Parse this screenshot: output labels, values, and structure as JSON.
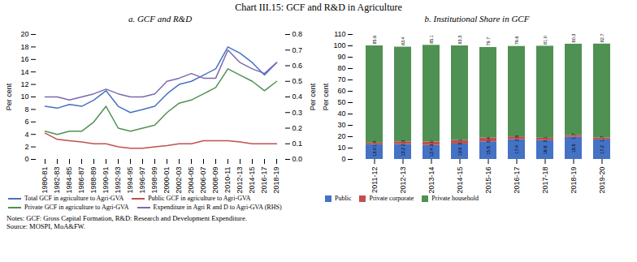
{
  "title": "Chart III.15: GCF and R&D in Agriculture",
  "notes": [
    "Notes: GCF: Gross Capital Formation, R&D: Research and Development Expenditure.",
    "Source: MOSPI, MoA&FW."
  ],
  "chart_data": [
    {
      "type": "line",
      "title": "a. GCF and R&D",
      "categories": [
        "1980-81",
        "1982-83",
        "1984-85",
        "1986-87",
        "1988-89",
        "1990-91",
        "1992-93",
        "1994-95",
        "1996-97",
        "1998-99",
        "2000-01",
        "2002-03",
        "2004-05",
        "2006-07",
        "2008-09",
        "2010-11",
        "2012-13",
        "2014-15",
        "2016-17",
        "2018-19"
      ],
      "series": [
        {
          "name": "Total GCF in agriculture to Agri-GVA",
          "color": "#4472C4",
          "values": [
            8.5,
            8.2,
            8.8,
            8.5,
            9.5,
            11.0,
            8.5,
            7.5,
            8.0,
            8.5,
            10.5,
            12.0,
            12.5,
            13.5,
            14.5,
            18.0,
            17.0,
            15.5,
            13.5,
            15.5
          ]
        },
        {
          "name": "Public GCF in agriculture to Agri-GVA",
          "color": "#C0504D",
          "values": [
            4.2,
            3.2,
            3.0,
            2.8,
            2.5,
            2.5,
            2.0,
            1.8,
            1.8,
            2.0,
            2.2,
            2.5,
            2.5,
            3.0,
            3.0,
            3.0,
            2.8,
            2.5,
            2.5,
            2.5
          ]
        },
        {
          "name": "Private GCF in agriculture to Agri-GVA",
          "color": "#4F9153",
          "values": [
            4.5,
            4.0,
            4.5,
            4.5,
            6.0,
            8.5,
            5.0,
            4.5,
            5.0,
            5.5,
            7.5,
            9.0,
            9.5,
            10.5,
            11.5,
            14.5,
            13.5,
            12.5,
            11.0,
            12.5
          ]
        },
        {
          "name": "Expenditure in Agri R and D to Agri-GVA (RHS)",
          "color": "#7B68AE",
          "axis": "y2",
          "values": [
            0.4,
            0.4,
            0.38,
            0.4,
            0.42,
            0.45,
            0.42,
            0.4,
            0.4,
            0.42,
            0.5,
            0.52,
            0.55,
            0.52,
            0.52,
            0.7,
            0.62,
            0.58,
            0.55,
            0.62
          ]
        }
      ],
      "ylabel": "Per cent",
      "y2label": "Per cent",
      "ylim": [
        0,
        20
      ],
      "yticks": [
        0,
        2,
        4,
        6,
        8,
        10,
        12,
        14,
        16,
        18,
        20
      ],
      "y2lim": [
        0,
        0.8
      ],
      "y2ticks": [
        {
          "value": 0,
          "label": "0.0"
        },
        0.1,
        0.2,
        0.3,
        0.4,
        0.5,
        0.6,
        0.7,
        0.8
      ],
      "grid": false,
      "legend": "bottom"
    },
    {
      "type": "bar",
      "title": "b. Institutional Share in GCF",
      "categories": [
        "2011-12",
        "2012-13",
        "2013-14",
        "2014-15",
        "2015-16",
        "2016-17",
        "2017-18",
        "2018-19",
        "2019-20"
      ],
      "series": [
        {
          "name": "Public",
          "color": "#4472C4",
          "values": [
            13.0,
            13.2,
            12.4,
            13.6,
            15.5,
            17.4,
            16.6,
            19.5,
            17.2
          ],
          "value_labels": [
            "13.0",
            "13.2",
            "12.4",
            "13.6",
            "15.5",
            "17.4",
            "16.6",
            "19.5",
            "17.2"
          ]
        },
        {
          "name": "Private corporate",
          "color": "#C0504D",
          "values": [
            1.4,
            2.3,
            3.0,
            3.1,
            3.4,
            2.5,
            2.1,
            1.7,
            1.7
          ],
          "value_labels": [
            "1.4",
            "2.3",
            "3.0",
            "3.1",
            "3.4",
            "2.5",
            "2.1",
            "1.7",
            "1.7"
          ]
        },
        {
          "name": "Private household",
          "color": "#4F9153",
          "values": [
            85.6,
            83.4,
            85.1,
            83.3,
            79.7,
            79.6,
            81.0,
            80.3,
            82.7
          ],
          "value_labels": [
            "85.6",
            "83.4",
            "85.1",
            "83.3",
            "79.7",
            "79.6",
            "81.0",
            "80.3",
            "82.7"
          ]
        }
      ],
      "ylabel": "Per cent",
      "ylim": [
        0,
        110
      ],
      "yticks": [
        0,
        10,
        20,
        30,
        40,
        50,
        60,
        70,
        80,
        90,
        100,
        110
      ],
      "stacked": true,
      "data_labels": true,
      "grid": false,
      "legend": "bottom"
    }
  ]
}
